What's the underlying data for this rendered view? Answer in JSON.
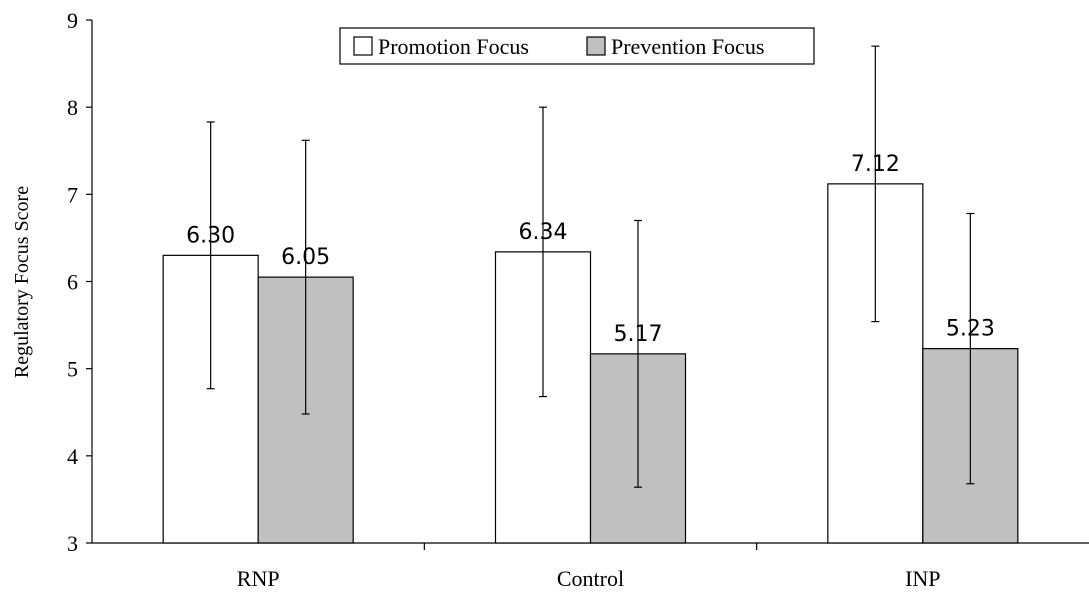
{
  "chart_data": {
    "type": "bar",
    "ylabel": "Regulatory Focus Score",
    "ylim": [
      3,
      9
    ],
    "yticks": [
      3,
      4,
      5,
      6,
      7,
      8,
      9
    ],
    "categories": [
      "RNP",
      "Control",
      "INP"
    ],
    "series": [
      {
        "name": "Promotion Focus",
        "color": "#ffffff",
        "values": [
          6.3,
          6.34,
          7.12
        ],
        "labels": [
          "6.30",
          "6.34",
          "7.12"
        ],
        "error_low": [
          4.77,
          4.68,
          5.54
        ],
        "error_high": [
          7.83,
          8.0,
          8.7
        ]
      },
      {
        "name": "Prevention Focus",
        "color": "#c0c0c0",
        "values": [
          6.05,
          5.17,
          5.23
        ],
        "labels": [
          "6.05",
          "5.17",
          "5.23"
        ],
        "error_low": [
          4.48,
          3.64,
          3.68
        ],
        "error_high": [
          7.62,
          6.7,
          6.78
        ]
      }
    ],
    "legend_position": "top-center",
    "grid": false
  }
}
